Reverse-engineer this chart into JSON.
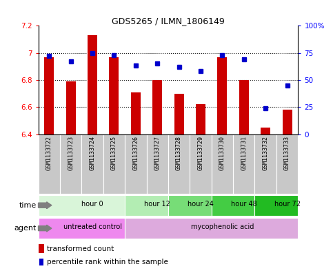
{
  "title": "GDS5265 / ILMN_1806149",
  "samples": [
    "GSM1133722",
    "GSM1133723",
    "GSM1133724",
    "GSM1133725",
    "GSM1133726",
    "GSM1133727",
    "GSM1133728",
    "GSM1133729",
    "GSM1133730",
    "GSM1133731",
    "GSM1133732",
    "GSM1133733"
  ],
  "bar_values": [
    6.97,
    6.79,
    7.13,
    6.97,
    6.71,
    6.8,
    6.7,
    6.62,
    6.97,
    6.8,
    6.45,
    6.58
  ],
  "percentile_values": [
    72,
    67,
    75,
    73,
    63,
    65,
    62,
    58,
    73,
    69,
    24,
    45
  ],
  "bar_bottom": 6.4,
  "ylim_left": [
    6.4,
    7.2
  ],
  "ylim_right": [
    0,
    100
  ],
  "yticks_left": [
    6.4,
    6.6,
    6.8,
    7.0,
    7.2
  ],
  "yticks_left_labels": [
    "6.4",
    "6.6",
    "6.8",
    "7",
    "7.2"
  ],
  "yticks_right": [
    0,
    25,
    50,
    75,
    100
  ],
  "yticks_right_labels": [
    "0",
    "25",
    "50",
    "75",
    "100%"
  ],
  "hlines": [
    6.6,
    6.8,
    7.0
  ],
  "bar_color": "#cc0000",
  "percentile_color": "#0000cc",
  "time_groups": [
    {
      "label": "hour 0",
      "start": 0,
      "end": 4,
      "color": "#d9f5d9"
    },
    {
      "label": "hour 12",
      "start": 4,
      "end": 6,
      "color": "#b3edb3"
    },
    {
      "label": "hour 24",
      "start": 6,
      "end": 8,
      "color": "#77dd77"
    },
    {
      "label": "hour 48",
      "start": 8,
      "end": 10,
      "color": "#44cc44"
    },
    {
      "label": "hour 72",
      "start": 10,
      "end": 12,
      "color": "#22bb22"
    }
  ],
  "agent_groups": [
    {
      "label": "untreated control",
      "start": 0,
      "end": 4,
      "color": "#ee88ee"
    },
    {
      "label": "mycophenolic acid",
      "start": 4,
      "end": 12,
      "color": "#ddaadd"
    }
  ],
  "bar_width": 0.45,
  "sample_bg_color": "#c8c8c8",
  "legend_bar_label": "transformed count",
  "legend_dot_label": "percentile rank within the sample",
  "time_label": "time",
  "agent_label": "agent"
}
